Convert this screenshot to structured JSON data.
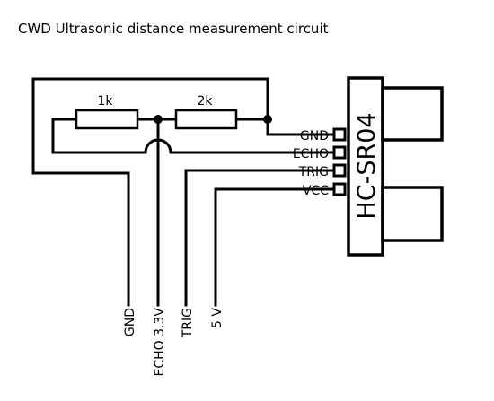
{
  "title": "CWD Ultrasonic distance measurement circuit",
  "resistors": {
    "r1": "1k",
    "r2": "2k"
  },
  "sensor": {
    "model": "HC-SR04",
    "pins": {
      "gnd": "GND",
      "echo": "ECHO",
      "trig": "TRIG",
      "vcc": "VCC"
    }
  },
  "outputs": {
    "gnd": "GND",
    "echo": "ECHO 3.3V",
    "trig": "TRIG",
    "vcc": "5 V"
  }
}
